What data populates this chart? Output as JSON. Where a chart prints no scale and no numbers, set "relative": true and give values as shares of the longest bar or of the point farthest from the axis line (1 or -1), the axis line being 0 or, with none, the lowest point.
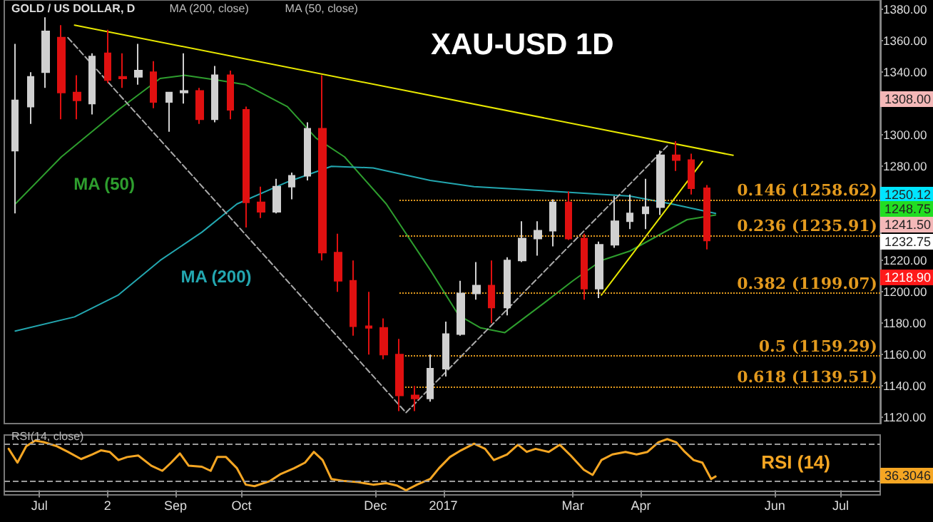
{
  "chart_data": [
    {
      "type": "candlestick",
      "title": "XAU-USD 1D",
      "subtitle": "GOLD / US DOLLAR, D",
      "annotations": [
        "MA (200, close)",
        "MA (50, close)",
        "1308.00",
        "1250.12",
        "1248.75",
        "1241.50",
        "1232.75",
        "1218.90"
      ],
      "x": [
        "2016-06-20",
        "2016-06-27",
        "2016-07-04",
        "2016-07-11",
        "2016-07-18",
        "2016-07-25",
        "2016-08-01",
        "2016-08-08",
        "2016-08-15",
        "2016-08-22",
        "2016-08-29",
        "2016-09-05",
        "2016-09-12",
        "2016-09-19",
        "2016-09-26",
        "2016-10-03",
        "2016-10-10",
        "2016-10-17",
        "2016-10-24",
        "2016-10-31",
        "2016-11-07",
        "2016-11-14",
        "2016-11-21",
        "2016-11-28",
        "2016-12-05",
        "2016-12-12",
        "2016-12-19",
        "2016-12-26",
        "2017-01-02",
        "2017-01-09",
        "2017-01-16",
        "2017-01-23",
        "2017-01-30",
        "2017-02-06",
        "2017-02-13",
        "2017-02-20",
        "2017-02-27",
        "2017-03-06",
        "2017-03-13",
        "2017-03-20",
        "2017-03-27",
        "2017-04-03",
        "2017-04-10",
        "2017-04-17",
        "2017-04-24",
        "2017-05-01"
      ],
      "ohlc": [
        [
          1290,
          1358,
          1250,
          1322
        ],
        [
          1318,
          1340,
          1307,
          1337
        ],
        [
          1340,
          1375,
          1330,
          1366
        ],
        [
          1362,
          1370,
          1310,
          1327
        ],
        [
          1327,
          1338,
          1310,
          1322
        ],
        [
          1320,
          1352,
          1313,
          1350
        ],
        [
          1352,
          1367,
          1333,
          1335
        ],
        [
          1337,
          1352,
          1330,
          1336
        ],
        [
          1337,
          1358,
          1332,
          1341
        ],
        [
          1340,
          1347,
          1317,
          1321
        ],
        [
          1321,
          1327,
          1302,
          1327
        ],
        [
          1327,
          1352,
          1320,
          1328
        ],
        [
          1328,
          1330,
          1307,
          1310
        ],
        [
          1310,
          1344,
          1308,
          1338
        ],
        [
          1338,
          1341,
          1310,
          1316
        ],
        [
          1316,
          1318,
          1241,
          1257
        ],
        [
          1257,
          1267,
          1247,
          1251
        ],
        [
          1251,
          1272,
          1250,
          1267
        ],
        [
          1267,
          1276,
          1259,
          1274
        ],
        [
          1274,
          1308,
          1271,
          1304
        ],
        [
          1304,
          1338,
          1220,
          1225
        ],
        [
          1225,
          1237,
          1200,
          1207
        ],
        [
          1207,
          1220,
          1172,
          1178
        ],
        [
          1178,
          1200,
          1160,
          1177
        ],
        [
          1177,
          1183,
          1157,
          1160
        ],
        [
          1160,
          1170,
          1124,
          1134
        ],
        [
          1134,
          1140,
          1124,
          1132
        ],
        [
          1132,
          1160,
          1130,
          1151
        ],
        [
          1151,
          1181,
          1146,
          1173
        ],
        [
          1173,
          1207,
          1172,
          1199
        ],
        [
          1199,
          1219,
          1195,
          1204
        ],
        [
          1204,
          1220,
          1180,
          1190
        ],
        [
          1190,
          1222,
          1185,
          1220
        ],
        [
          1220,
          1245,
          1219,
          1234
        ],
        [
          1234,
          1245,
          1223,
          1239
        ],
        [
          1239,
          1259,
          1229,
          1257
        ],
        [
          1257,
          1264,
          1233,
          1234
        ],
        [
          1234,
          1237,
          1195,
          1202
        ],
        [
          1202,
          1232,
          1196,
          1230
        ],
        [
          1230,
          1261,
          1228,
          1245
        ],
        [
          1245,
          1262,
          1240,
          1250
        ],
        [
          1250,
          1272,
          1240,
          1254
        ],
        [
          1254,
          1290,
          1249,
          1287
        ],
        [
          1287,
          1296,
          1277,
          1284
        ],
        [
          1284,
          1288,
          1262,
          1266
        ],
        [
          1266,
          1268,
          1227,
          1232.75
        ]
      ],
      "colors": [
        "#d0d0d0",
        "#d0d0d0",
        "#d0d0d0",
        "#e01010",
        "#e01010",
        "#d0d0d0",
        "#e01010",
        "#e01010",
        "#d0d0d0",
        "#e01010",
        "#d0d0d0",
        "#d0d0d0",
        "#e01010",
        "#d0d0d0",
        "#e01010",
        "#e01010",
        "#e01010",
        "#d0d0d0",
        "#d0d0d0",
        "#d0d0d0",
        "#e01010",
        "#e01010",
        "#e01010",
        "#e01010",
        "#e01010",
        "#e01010",
        "#e01010",
        "#d0d0d0",
        "#d0d0d0",
        "#d0d0d0",
        "#d0d0d0",
        "#e01010",
        "#d0d0d0",
        "#d0d0d0",
        "#d0d0d0",
        "#d0d0d0",
        "#e01010",
        "#e01010",
        "#d0d0d0",
        "#d0d0d0",
        "#d0d0d0",
        "#d0d0d0",
        "#d0d0d0",
        "#e01010",
        "#e01010",
        "#e01010"
      ],
      "series": [
        {
          "type": "line",
          "name": "MA (50)",
          "color": "#2e9e2e",
          "x": [
            "2016-06-20",
            "2016-07-11",
            "2016-08-06",
            "2016-08-25",
            "2016-09-05",
            "2016-09-20",
            "2016-10-03",
            "2016-10-22",
            "2016-11-04",
            "2016-11-17",
            "2016-12-06",
            "2016-12-26",
            "2017-01-08",
            "2017-01-18",
            "2017-01-29",
            "2017-02-16",
            "2017-03-01",
            "2017-03-14",
            "2017-03-27",
            "2017-04-09",
            "2017-04-22",
            "2017-05-05"
          ],
          "values": [
            1256,
            1286,
            1316,
            1336,
            1338,
            1335,
            1332,
            1318,
            1298,
            1286,
            1256,
            1214,
            1185,
            1177,
            1174,
            1193,
            1207,
            1220,
            1226,
            1236,
            1246,
            1249
          ]
        },
        {
          "type": "line",
          "name": "MA (200)",
          "color": "#23a7b0",
          "x": [
            "2016-06-20",
            "2016-07-17",
            "2016-08-06",
            "2016-08-25",
            "2016-09-13",
            "2016-09-29",
            "2016-10-22",
            "2016-11-11",
            "2016-11-30",
            "2016-12-26",
            "2017-01-15",
            "2017-02-21",
            "2017-03-27",
            "2017-04-15",
            "2017-05-05"
          ],
          "values": [
            1175,
            1184,
            1198,
            1220,
            1238,
            1256,
            1270,
            1280,
            1279,
            1271,
            1267,
            1264,
            1261,
            1256,
            1250
          ]
        },
        {
          "type": "line",
          "color": "#e8e800",
          "x": [
            "2016-07-17",
            "2017-05-13"
          ],
          "values": [
            1370,
            1287
          ]
        },
        {
          "type": "line",
          "color": "#e8e800",
          "x": [
            "2017-03-14",
            "2017-04-29"
          ],
          "values": [
            1198,
            1283
          ]
        },
        {
          "type": "line",
          "color": "#aaaaaa",
          "line_style": "dashed",
          "x": [
            "2016-07-14",
            "2016-12-15",
            "2017-04-13"
          ],
          "values": [
            1362,
            1123,
            1293
          ]
        }
      ],
      "ref_lines": [
        {
          "axis": "y",
          "value": 1258.62,
          "label": "0.146 (1258.62)",
          "color": "#e39a1e",
          "line_style": "dotted"
        },
        {
          "axis": "y",
          "value": 1235.91,
          "label": "0.236 (1235.91)",
          "color": "#e39a1e",
          "line_style": "dotted"
        },
        {
          "axis": "y",
          "value": 1199.07,
          "label": "0.382 (1199.07)",
          "color": "#e39a1e",
          "line_style": "dotted"
        },
        {
          "axis": "y",
          "value": 1159.29,
          "label": "0.5 (1159.29)",
          "color": "#e39a1e",
          "line_style": "dotted"
        },
        {
          "axis": "y",
          "value": 1139.51,
          "label": "0.618 (1139.51)",
          "color": "#e39a1e",
          "line_style": "dotted"
        }
      ],
      "xlim": [
        "2016-06-15",
        "2017-07-19"
      ],
      "ylim": [
        1116,
        1386
      ],
      "yticks": [
        {
          "value": 1120,
          "label": "1120.00"
        },
        {
          "value": 1140,
          "label": "1140.00"
        },
        {
          "value": 1160,
          "label": "1160.00"
        },
        {
          "value": 1180,
          "label": "1180.00"
        },
        {
          "value": 1200,
          "label": "1200.00"
        },
        {
          "value": 1220,
          "label": "1220.00"
        },
        {
          "value": 1280,
          "label": "1280.00"
        },
        {
          "value": 1300,
          "label": "1300.00"
        },
        {
          "value": 1340,
          "label": "1340.00"
        },
        {
          "value": 1360,
          "label": "1360.00"
        },
        {
          "value": 1380,
          "label": "1380.00"
        }
      ],
      "tick_labels": "y"
    },
    {
      "type": "line",
      "relative": true,
      "annotations": [
        "RSI(14, close)",
        "36.3046"
      ],
      "x": [
        "2016-06-17",
        "2016-06-21",
        "2016-06-25",
        "2016-06-29",
        "2016-07-03",
        "2016-07-09",
        "2016-07-14",
        "2016-07-20",
        "2016-07-25",
        "2016-07-29",
        "2016-08-02",
        "2016-08-06",
        "2016-08-10",
        "2016-08-15",
        "2016-08-21",
        "2016-08-26",
        "2016-08-30",
        "2016-09-03",
        "2016-09-07",
        "2016-09-13",
        "2016-09-17",
        "2016-09-20",
        "2016-09-24",
        "2016-09-29",
        "2016-10-03",
        "2016-10-07",
        "2016-10-14",
        "2016-10-19",
        "2016-10-25",
        "2016-10-30",
        "2016-11-03",
        "2016-11-07",
        "2016-11-11",
        "2016-11-17",
        "2016-11-23",
        "2016-11-30",
        "2016-12-06",
        "2016-12-11",
        "2016-12-15",
        "2016-12-20",
        "2016-12-26",
        "2016-12-30",
        "2017-01-04",
        "2017-01-09",
        "2017-01-15",
        "2017-01-20",
        "2017-01-24",
        "2017-01-30",
        "2017-02-04",
        "2017-02-08",
        "2017-02-12",
        "2017-02-18",
        "2017-02-23",
        "2017-02-28",
        "2017-03-06",
        "2017-03-10",
        "2017-03-14",
        "2017-03-19",
        "2017-03-25",
        "2017-03-30",
        "2017-04-04",
        "2017-04-09",
        "2017-04-13",
        "2017-04-17",
        "2017-04-21",
        "2017-04-25",
        "2017-04-29",
        "2017-05-03",
        "2017-05-05"
      ],
      "series": [
        {
          "name": "RSI (14)",
          "color": "#f5a623",
          "values": [
            0.81,
            0.54,
            0.86,
            0.97,
            0.94,
            0.86,
            0.75,
            0.61,
            0.7,
            0.78,
            0.75,
            0.59,
            0.65,
            0.68,
            0.48,
            0.38,
            0.54,
            0.72,
            0.48,
            0.46,
            0.38,
            0.65,
            0.65,
            0.43,
            0.11,
            0.08,
            0.18,
            0.32,
            0.43,
            0.54,
            0.75,
            0.59,
            0.22,
            0.18,
            0.16,
            0.11,
            0.14,
            0.09,
            0,
            0.11,
            0.22,
            0.43,
            0.65,
            0.78,
            0.91,
            0.81,
            0.59,
            0.7,
            0.89,
            0.75,
            0.81,
            0.75,
            0.89,
            0.68,
            0.4,
            0.3,
            0.59,
            0.7,
            0.75,
            0.7,
            0.75,
            0.94,
            1,
            0.94,
            0.75,
            0.59,
            0.54,
            0.22,
            0.27
          ]
        }
      ],
      "ref_lines": [
        {
          "axis": "y",
          "value": 0.91,
          "color": "#9a9a9a",
          "line_style": "dashed"
        },
        {
          "axis": "y",
          "value": 0.18,
          "color": "#9a9a9a",
          "line_style": "dashed"
        }
      ],
      "xlim": [
        "2016-06-15",
        "2017-07-19"
      ],
      "xticks": [
        {
          "value": "2016-07-01",
          "label": "Jul"
        },
        {
          "value": "2016-08-01",
          "label": "2"
        },
        {
          "value": "2016-09-01",
          "label": "Sep"
        },
        {
          "value": "2016-10-01",
          "label": "Oct"
        },
        {
          "value": "2016-12-01",
          "label": "Dec"
        },
        {
          "value": "2017-01-01",
          "label": "2017"
        },
        {
          "value": "2017-03-01",
          "label": "Mar"
        },
        {
          "value": "2017-04-01",
          "label": "Apr"
        },
        {
          "value": "2017-06-01",
          "label": "Jun"
        },
        {
          "value": "2017-07-01",
          "label": "Jul"
        }
      ],
      "tick_labels": "x"
    }
  ]
}
